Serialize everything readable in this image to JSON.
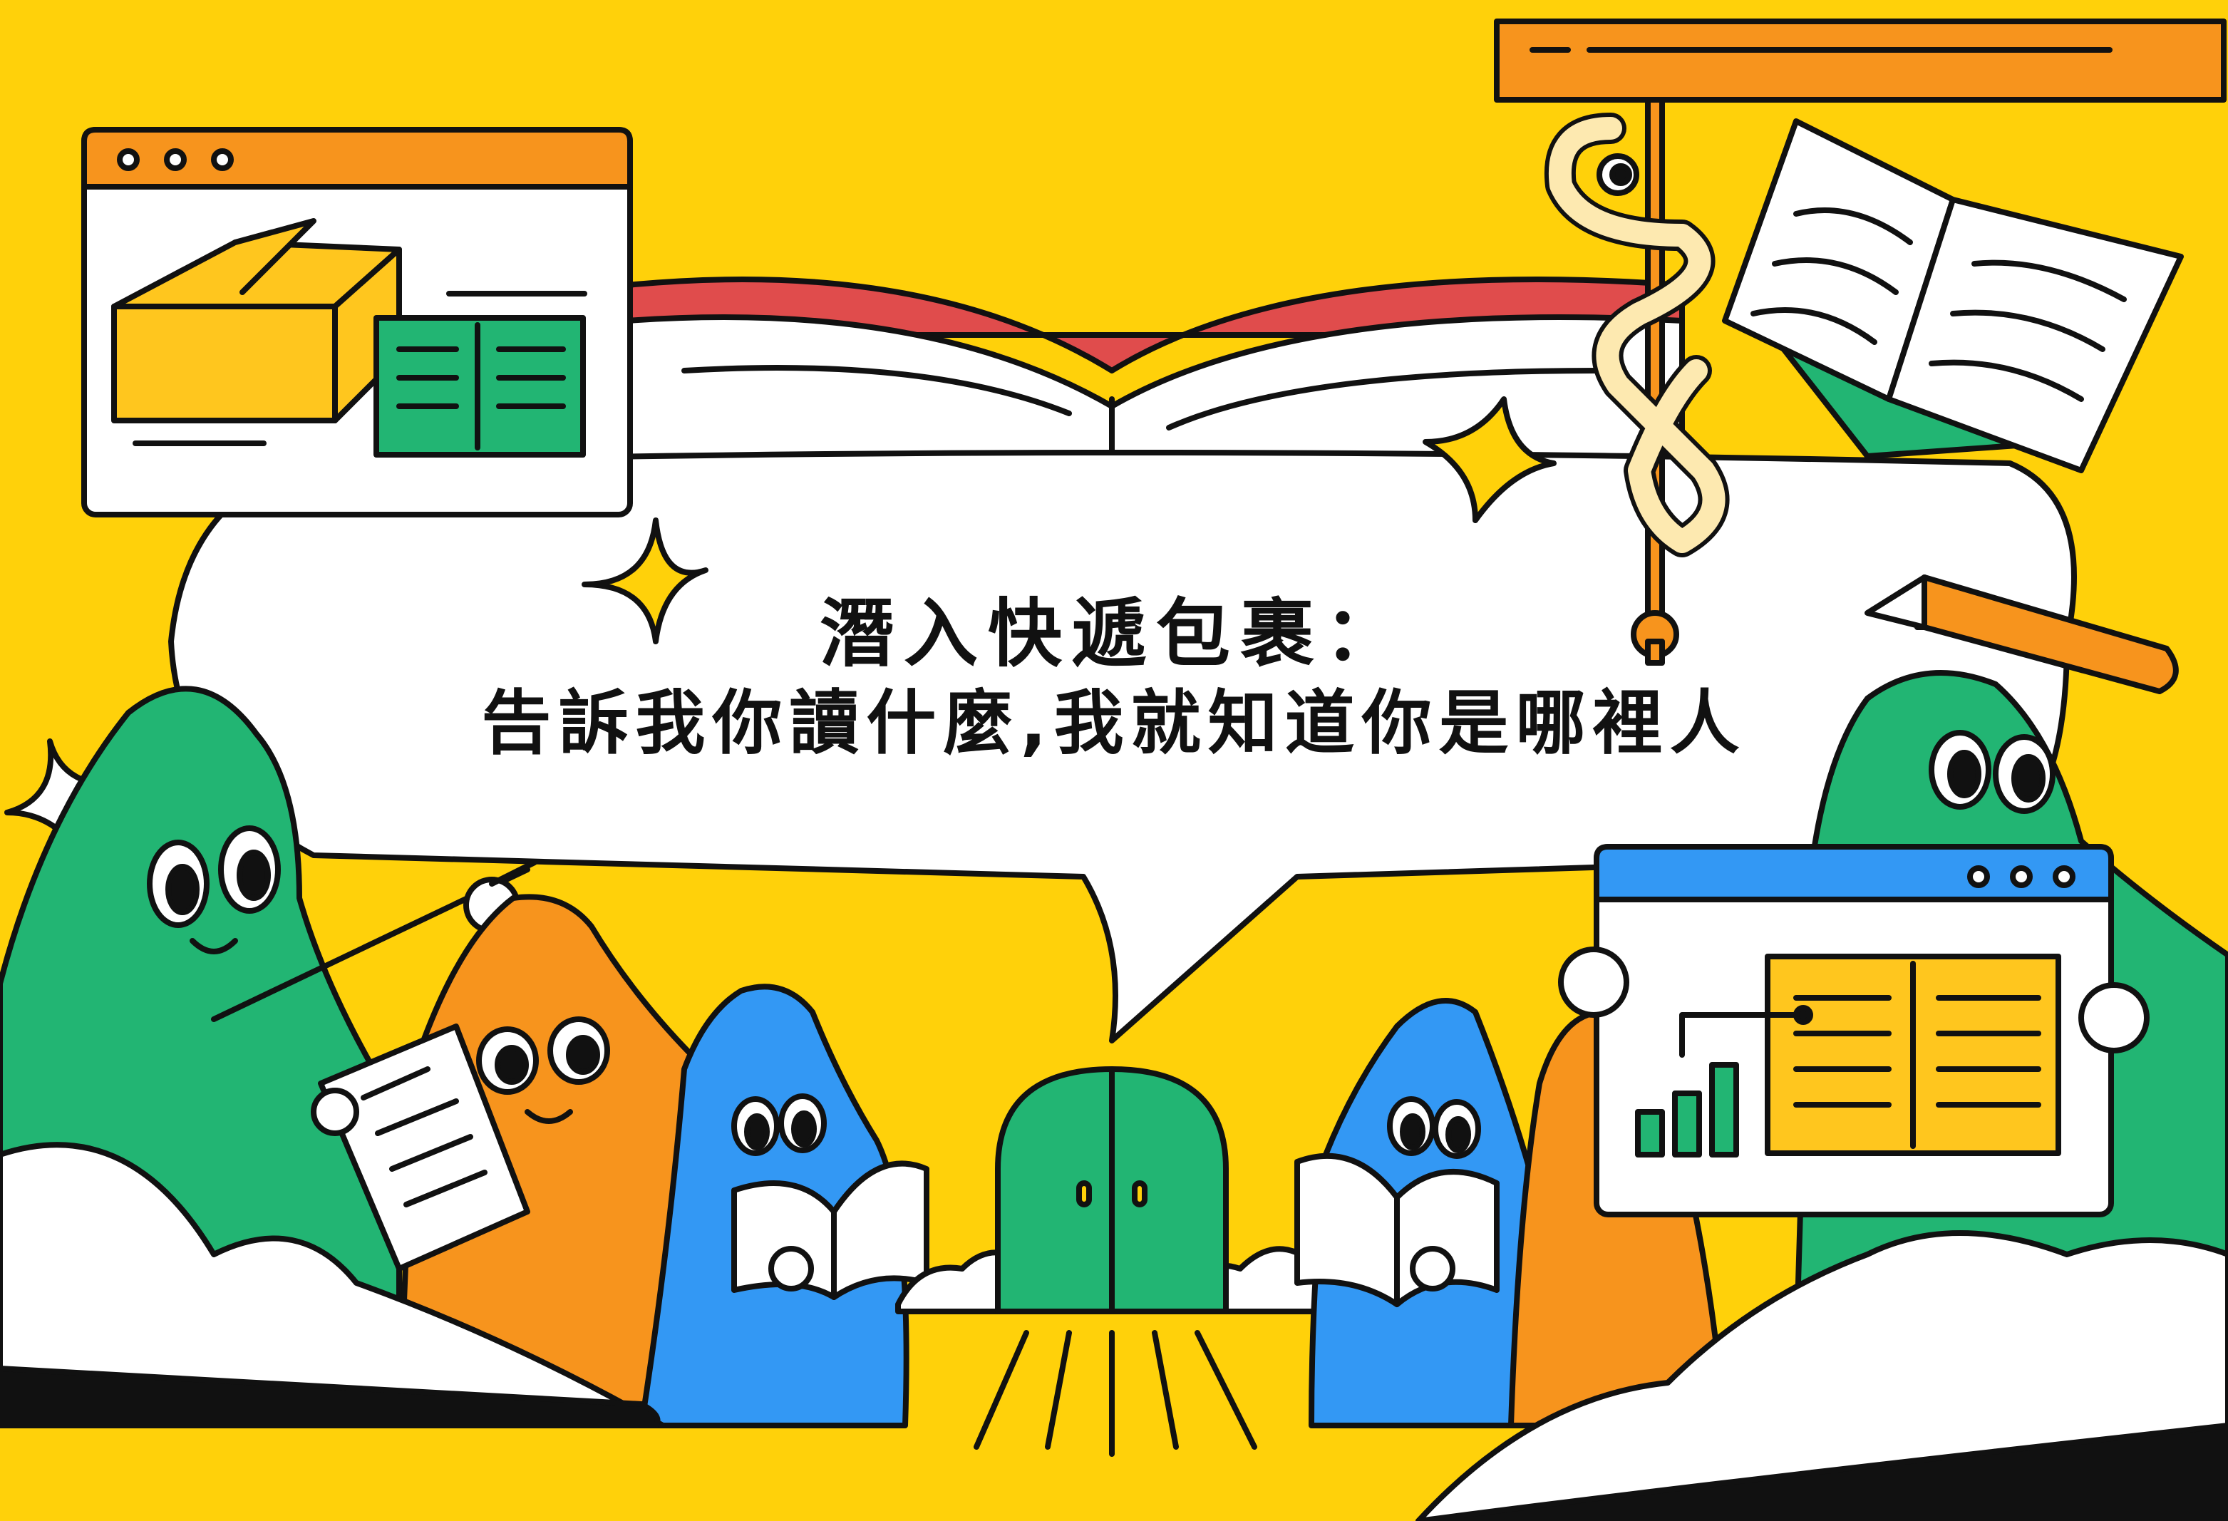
{
  "title": {
    "line1": "潛入快遞包裹：",
    "line2": "告訴我你讀什麼,我就知道你是哪裡人"
  },
  "colors": {
    "background": "#FFD10A",
    "green": "#22B573",
    "orange": "#F7941D",
    "blue": "#3398F4",
    "red": "#E04C4C",
    "ink": "#111111",
    "cream": "#FDE9B0"
  },
  "icons": [
    "browser-window-icon",
    "package-box-icon",
    "open-book-icon",
    "bar-chart-icon",
    "snake-on-pole-icon",
    "sparkle-icon",
    "pencil-icon",
    "door-icon"
  ]
}
